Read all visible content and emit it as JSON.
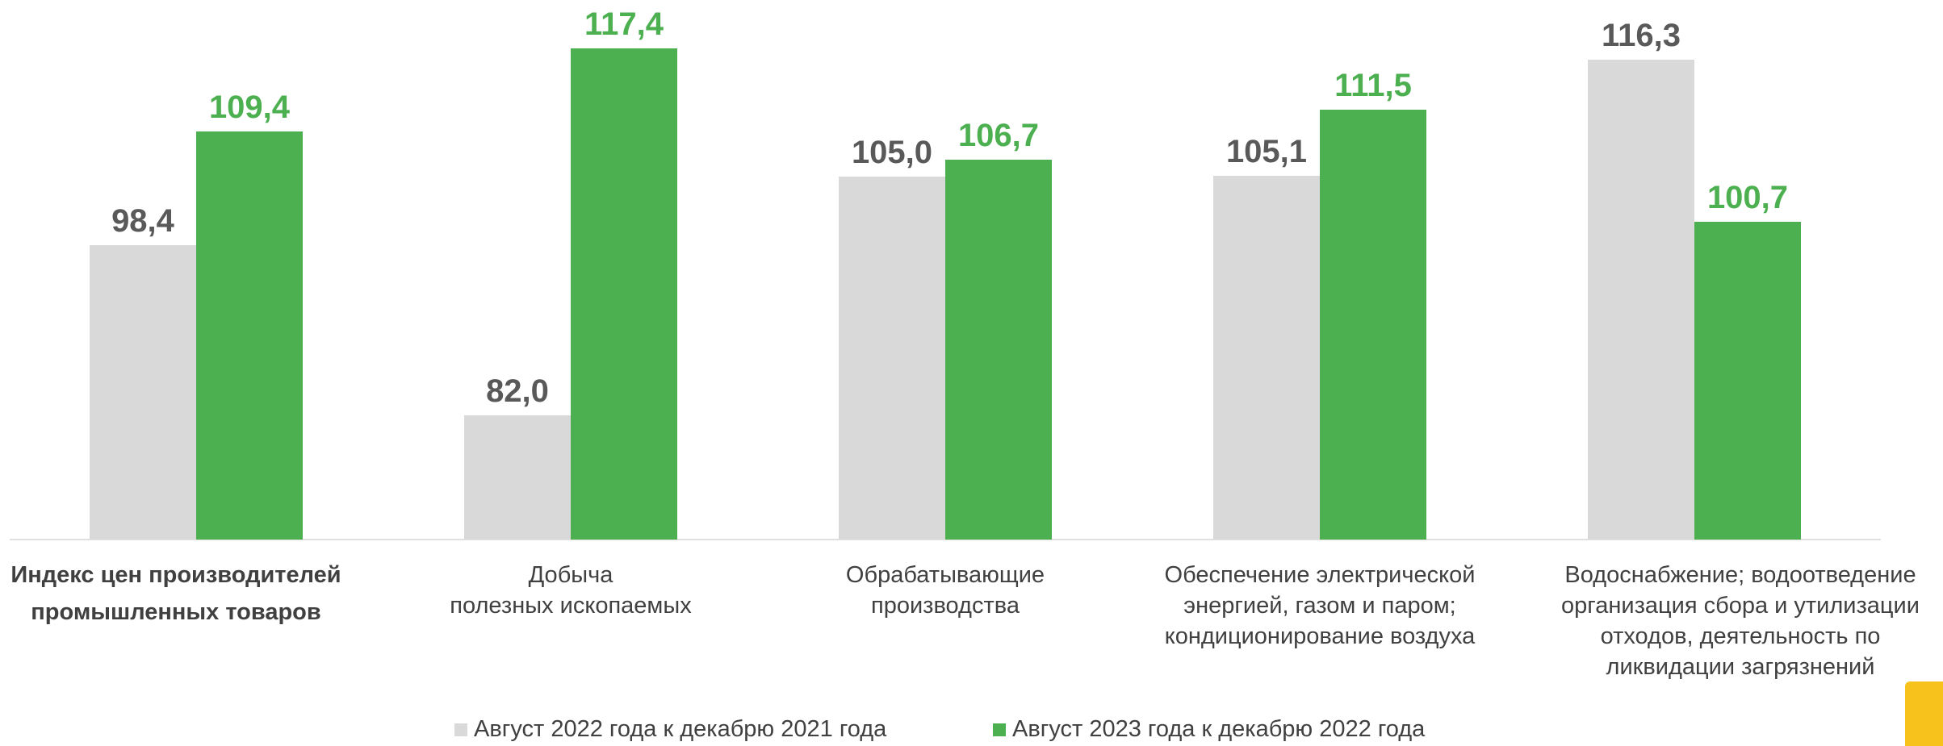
{
  "chart_data": {
    "type": "bar",
    "categories": [
      "Индекс цен производителей\nпромышленных товаров",
      "Добыча\nполезных ископаемых",
      "Обрабатывающие\nпроизводства",
      "Обеспечение электрической\nэнергией, газом и паром;\nкондиционирование воздуха",
      "Водоснабжение; водоотведение\nорганизация сбора и утилизации\nотходов, деятельность по\nликвидации загрязнений"
    ],
    "series": [
      {
        "name": "Август 2022 года к декабрю 2021 года",
        "color": "#d9d9d9",
        "label_color": "#595959",
        "values": [
          98.4,
          82.0,
          105.0,
          105.1,
          116.3
        ],
        "value_labels": [
          "98,4",
          "82,0",
          "105,0",
          "105,1",
          "116,3"
        ]
      },
      {
        "name": "Август 2023 года к декабрю 2022 года",
        "color": "#4caf50",
        "label_color": "#4caf50",
        "values": [
          109.4,
          117.4,
          106.7,
          111.5,
          100.7
        ],
        "value_labels": [
          "109,4",
          "117,4",
          "106,7",
          "111,5",
          "100,7"
        ]
      }
    ],
    "ylim": [
      70,
      122
    ]
  }
}
